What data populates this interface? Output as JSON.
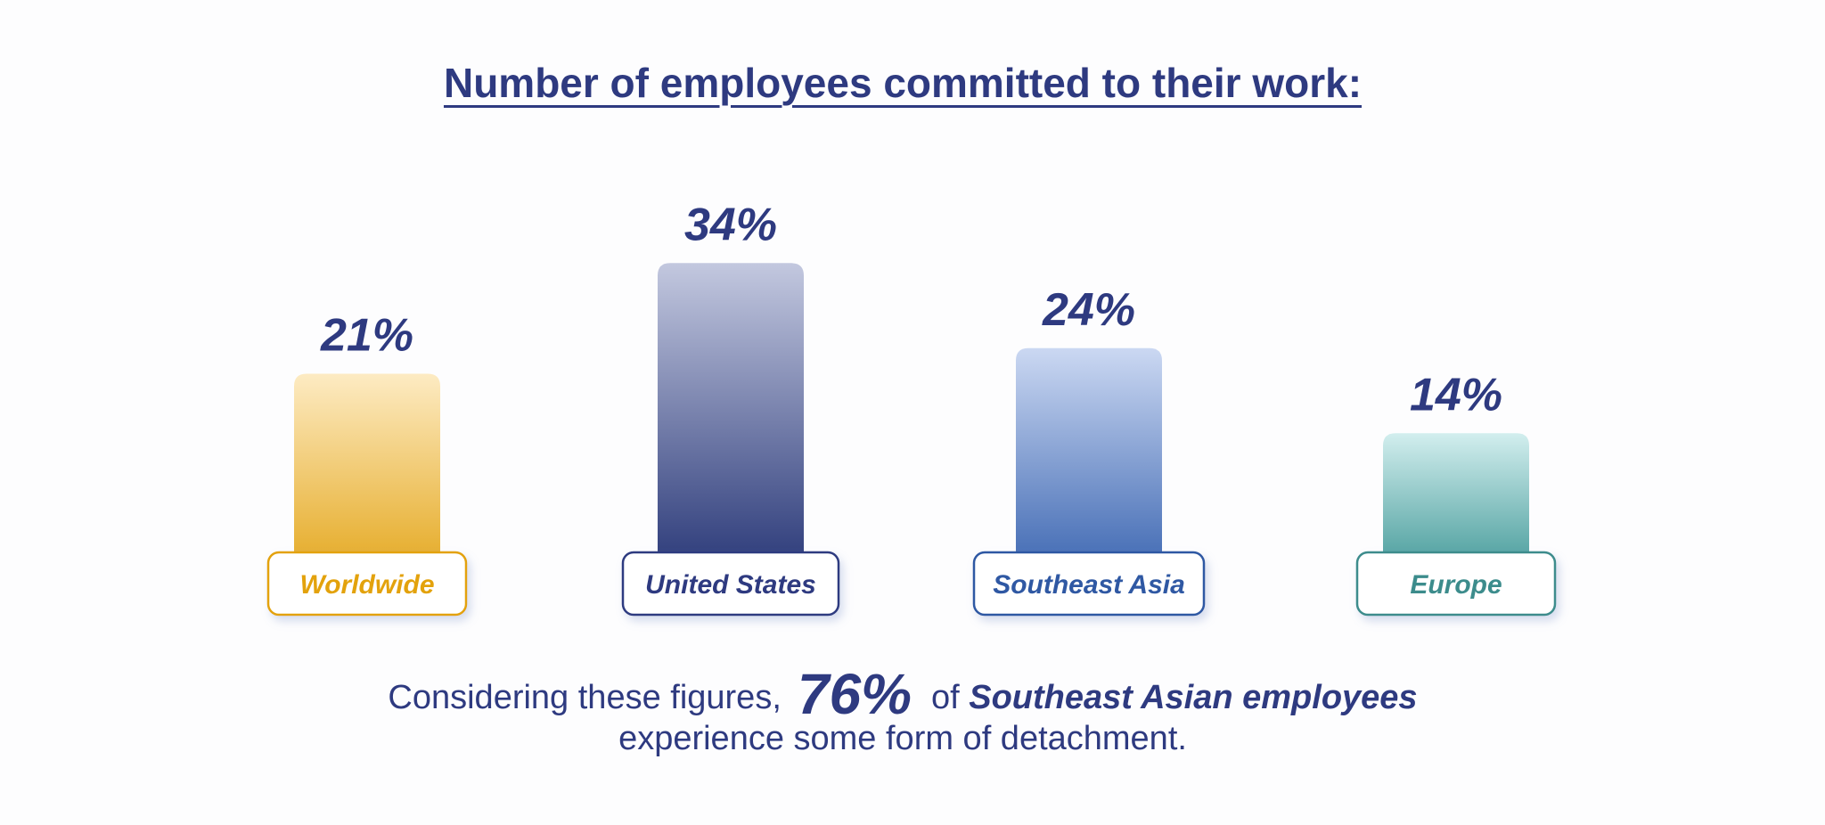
{
  "title": "Number of employees committed to their work:",
  "chart_data": {
    "type": "bar",
    "unit": "%",
    "categories": [
      "Worldwide",
      "United States",
      "Southeast Asia",
      "Europe"
    ],
    "values": [
      21,
      34,
      24,
      14
    ],
    "value_labels": [
      "21%",
      "34%",
      "24%",
      "14%"
    ],
    "colors": [
      {
        "top": "#fdebc3",
        "bottom": "#e7b033",
        "label": "#e3a20c"
      },
      {
        "top": "#c3c8df",
        "bottom": "#34427f",
        "label": "#2e3a80"
      },
      {
        "top": "#cbd8f2",
        "bottom": "#4b72b8",
        "label": "#2f58a3"
      },
      {
        "top": "#d2eeee",
        "bottom": "#5aa7a6",
        "label": "#3c8c8c"
      }
    ],
    "ylim": [
      0,
      34
    ],
    "grid": false,
    "legend": "none"
  },
  "footnote": {
    "part1": "Considering these figures,",
    "highlight": "76%",
    "part2": "of",
    "emphasis": "Southeast Asian employees",
    "line2": "experience some form of detachment."
  },
  "colors": {
    "text": "#2e3a80",
    "background": "#fdfdfe"
  }
}
